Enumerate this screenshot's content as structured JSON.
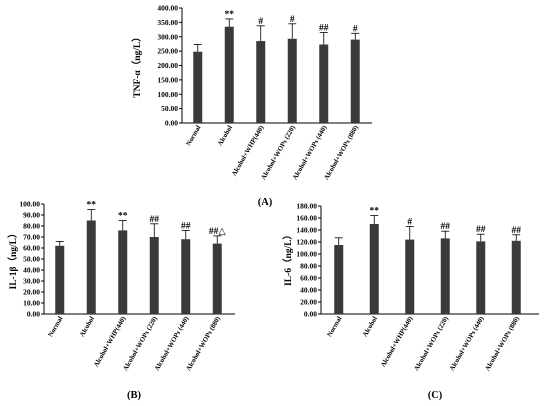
{
  "colors": {
    "bar": "#3a3a3a",
    "axis": "#000000",
    "errorbar": "#000000"
  },
  "chart_data": [
    {
      "type": "bar",
      "panel_label": "(A)",
      "ylabel": "TNF-α（ng/L）",
      "ylim": [
        0,
        400
      ],
      "yticks": [
        "0.00",
        "50.00",
        "100.00",
        "150.00",
        "200.00",
        "250.00",
        "300.00",
        "350.00",
        "400.00"
      ],
      "categories": [
        "Normal",
        "Alcohol",
        "Alcohol+WHP(440)",
        "Alcohol+WOPs (220)",
        "Alcohol+WOPs (440)",
        "Alcohol+WOPs (880)"
      ],
      "values": [
        248,
        335,
        285,
        293,
        273,
        290
      ],
      "errors": [
        25,
        27,
        53,
        52,
        42,
        22
      ],
      "significance": [
        "",
        "**",
        "#",
        "#",
        "##",
        "#"
      ]
    },
    {
      "type": "bar",
      "panel_label": "(B)",
      "ylabel": "IL-1β（ng/L）",
      "ylim": [
        0,
        100
      ],
      "yticks": [
        "0.00",
        "10.00",
        "20.00",
        "30.00",
        "40.00",
        "50.00",
        "60.00",
        "70.00",
        "80.00",
        "90.00",
        "100.00"
      ],
      "categories": [
        "Normal",
        "Alcohol",
        "Alcohol+WHP(440)",
        "Alcohol+WOPs (220)",
        "Alcohol+WOPs (440)",
        "Alcohol+WOPs (880)"
      ],
      "values": [
        62,
        85,
        76,
        70,
        68,
        64
      ],
      "errors": [
        4,
        10,
        9,
        12,
        8,
        7
      ],
      "significance": [
        "",
        "**",
        "**",
        "##",
        "##",
        "##△"
      ]
    },
    {
      "type": "bar",
      "panel_label": "(C)",
      "ylabel": "IL-6（ng/L）",
      "ylim": [
        0,
        180
      ],
      "yticks": [
        "0.00",
        "20.00",
        "40.00",
        "60.00",
        "80.00",
        "100.00",
        "120.00",
        "140.00",
        "160.00",
        "180.00"
      ],
      "categories": [
        "Normal",
        "Alcohol",
        "Alcohol+WHP(440)",
        "Alcohol+WOPs (220)",
        "Alcohol+WOPs (440)",
        "Alcohol+WOPs (880)"
      ],
      "values": [
        115,
        150,
        124,
        126,
        121,
        122
      ],
      "errors": [
        12,
        14,
        22,
        12,
        12,
        10
      ],
      "significance": [
        "",
        "**",
        "#",
        "##",
        "##",
        "##"
      ]
    }
  ]
}
